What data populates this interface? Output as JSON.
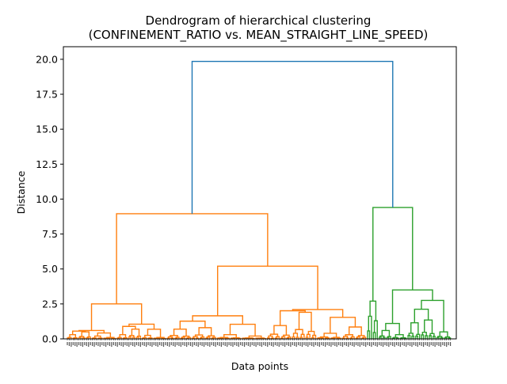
{
  "chart_data": {
    "type": "dendrogram",
    "title_line1": "Dendrogram of hierarchical clustering",
    "title_line2": "(CONFINEMENT_RATIO vs. MEAN_STRAIGHT_LINE_SPEED)",
    "xlabel": "Data points",
    "ylabel": "Distance",
    "ylim": [
      0,
      20.9
    ],
    "yticks": [
      "0.0",
      "2.5",
      "5.0",
      "7.5",
      "10.0",
      "12.5",
      "15.0",
      "17.5",
      "20.0"
    ],
    "grid": false,
    "leaf_count": 200,
    "colors": {
      "root": "#1f77b4",
      "cluster_1": "#ff7f0e",
      "cluster_2": "#2ca02c"
    },
    "clusters": [
      {
        "name": "cluster_1",
        "color": "#ff7f0e",
        "merge_height": 8.95,
        "left_group": {
          "merge_height": 2.5,
          "subgroups": [
            {
              "merge_height": 0.6,
              "subgroups": [
                0.3,
                0.5,
                0.2,
                0.1
              ]
            },
            {
              "merge_height": 1.05,
              "subgroups": [
                0.3,
                0.7,
                0.25,
                0.1
              ]
            }
          ]
        },
        "right_group": {
          "merge_height": 5.2,
          "subgroups": [
            {
              "merge_height": 1.65,
              "subgroups": [
                0.7,
                0.8,
                0.3,
                0.2
              ]
            },
            {
              "merge_height": 2.1,
              "subgroups": [
                0.95,
                1.9,
                0.4,
                0.85
              ]
            }
          ]
        }
      },
      {
        "name": "cluster_2",
        "color": "#2ca02c",
        "merge_height": 9.4,
        "left_group": {
          "merge_height": 2.7
        },
        "right_group": {
          "merge_height": 3.5,
          "subgroups": [
            {
              "merge_height": 1.1,
              "subgroups": [
                0.6,
                0.3
              ]
            },
            {
              "merge_height": 2.75,
              "subgroups": [
                1.15,
                1.35,
                0.5
              ]
            }
          ]
        }
      }
    ],
    "root_merge_height": 19.85
  }
}
